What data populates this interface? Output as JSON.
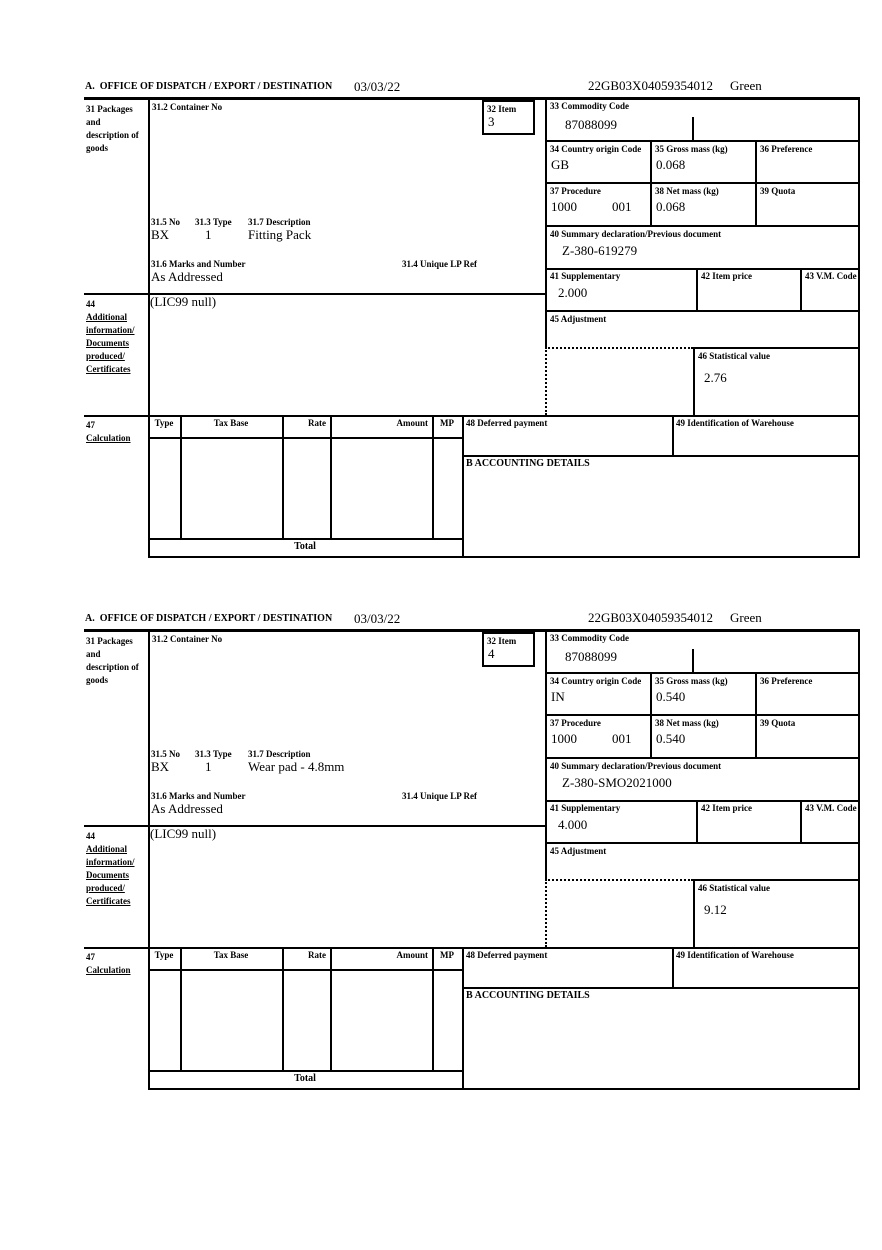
{
  "page": {
    "background": "#ffffff",
    "ink": "#000000"
  },
  "form": {
    "header": {
      "office": "A.  OFFICE OF DISPATCH / EXPORT / DESTINATION",
      "date": "03/03/22",
      "mrn": "22GB03X04059354012",
      "routing": "Green"
    },
    "labels": {
      "box31": "31 Packages and description of goods",
      "box31_2": "31.2 Container No",
      "box32": "32 Item",
      "box33": "33 Commodity Code",
      "box34": "34 Country origin Code",
      "box35": "35 Gross mass (kg)",
      "box36": "36 Preference",
      "box37": "37 Procedure",
      "box38": "38 Net mass (kg)",
      "box39": "39 Quota",
      "box40": "40 Summary declaration/Previous document",
      "box31_5": "31.5 No",
      "box31_3": "31.3 Type",
      "box31_7": "31.7 Description",
      "box31_6": "31.6 Marks and Number",
      "box31_4": "31.4 Unique LP Ref",
      "box41": "41 Supplementary",
      "box42": "42 Item price",
      "box43": "43 V.M. Code",
      "box44_no": "44",
      "box44_l1": "Additional",
      "box44_l2": "information/",
      "box44_l3": "Documents",
      "box44_l4": "produced/",
      "box44_l5": "Certificates",
      "box45": "45 Adjustment",
      "box46": "46 Statistical value",
      "box47_no": "47",
      "box47_name": "Calculation",
      "col_type": "Type",
      "col_tax_base": "Tax Base",
      "col_rate": "Rate",
      "col_amount": "Amount",
      "col_mp": "MP",
      "total": "Total",
      "box48": "48 Deferred payment",
      "box49": "49 Identification of Warehouse",
      "accounting": "B ACCOUNTING DETAILS"
    },
    "items": [
      {
        "item_no": "3",
        "commodity_code": "87088099",
        "country_origin_code": "GB",
        "gross_mass_kg": "0.068",
        "procedure_1": "1000",
        "procedure_2": "001",
        "net_mass_kg": "0.068",
        "previous_document": "Z-380-619279",
        "package_no": "BX",
        "package_type": "1",
        "description": "Fitting Pack",
        "marks_and_number": "As Addressed",
        "supplementary": "2.000",
        "additional_information": "(LIC99 null)",
        "statistical_value": "2.76"
      },
      {
        "item_no": "4",
        "commodity_code": "87088099",
        "country_origin_code": "IN",
        "gross_mass_kg": "0.540",
        "procedure_1": "1000",
        "procedure_2": "001",
        "net_mass_kg": "0.540",
        "previous_document": "Z-380-SMO2021000",
        "package_no": "BX",
        "package_type": "1",
        "description": "Wear pad - 4.8mm",
        "marks_and_number": "As Addressed",
        "supplementary": "4.000",
        "additional_information": "(LIC99 null)",
        "statistical_value": "9.12"
      }
    ]
  }
}
